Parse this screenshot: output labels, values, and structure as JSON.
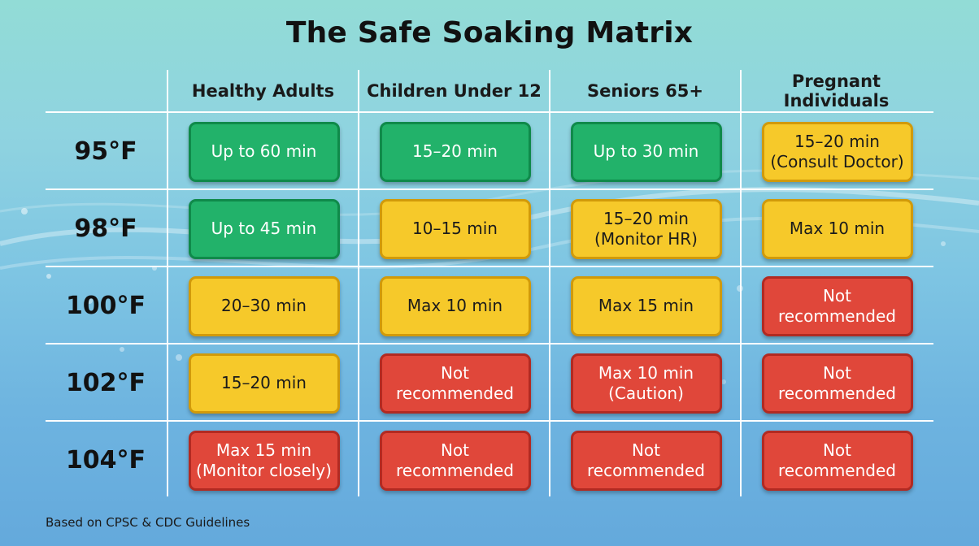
{
  "title": "The Safe Soaking Matrix",
  "columns": [
    "Healthy Adults",
    "Children Under 12",
    "Seniors 65+",
    "Pregnant Individuals"
  ],
  "rows": [
    {
      "temp": "95°F",
      "cells": [
        {
          "text": "Up to 60 min",
          "level": "green"
        },
        {
          "text": "15–20 min",
          "level": "green"
        },
        {
          "text": "Up to 30 min",
          "level": "green"
        },
        {
          "text": "15–20 min\n(Consult Doctor)",
          "level": "yellow"
        }
      ]
    },
    {
      "temp": "98°F",
      "cells": [
        {
          "text": "Up to 45 min",
          "level": "green"
        },
        {
          "text": "10–15 min",
          "level": "yellow"
        },
        {
          "text": "15–20 min\n(Monitor HR)",
          "level": "yellow"
        },
        {
          "text": "Max 10 min",
          "level": "yellow"
        }
      ]
    },
    {
      "temp": "100°F",
      "cells": [
        {
          "text": "20–30 min",
          "level": "yellow"
        },
        {
          "text": "Max 10 min",
          "level": "yellow"
        },
        {
          "text": "Max 15 min",
          "level": "yellow"
        },
        {
          "text": "Not\nrecommended",
          "level": "red"
        }
      ]
    },
    {
      "temp": "102°F",
      "cells": [
        {
          "text": "15–20 min",
          "level": "yellow"
        },
        {
          "text": "Not\nrecommended",
          "level": "red"
        },
        {
          "text": "Max 10 min\n(Caution)",
          "level": "red"
        },
        {
          "text": "Not\nrecommended",
          "level": "red"
        }
      ]
    },
    {
      "temp": "104°F",
      "cells": [
        {
          "text": "Max 15 min\n(Monitor closely)",
          "level": "red"
        },
        {
          "text": "Not\nrecommended",
          "level": "red"
        },
        {
          "text": "Not\nrecommended",
          "level": "red"
        },
        {
          "text": "Not\nrecommended",
          "level": "red"
        }
      ]
    }
  ],
  "colors": {
    "green": "#22b26a",
    "yellow": "#f6c92a",
    "red": "#e0473a"
  },
  "footnote": "Based on CPSC & CDC Guidelines"
}
